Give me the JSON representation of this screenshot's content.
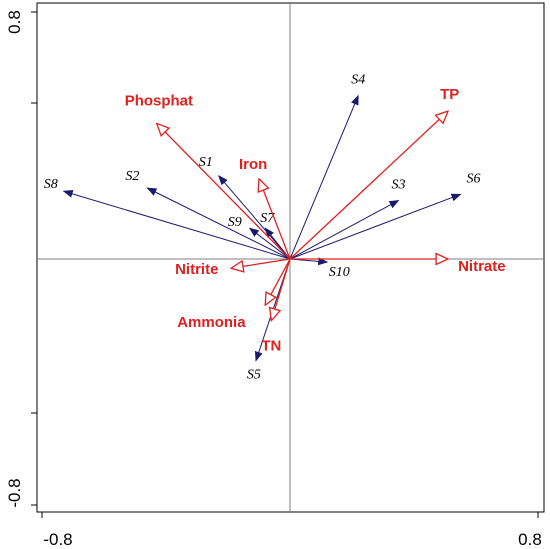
{
  "chart_data": {
    "type": "scatter",
    "title": "",
    "xlabel": "",
    "ylabel": "",
    "xlim": [
      -0.8,
      0.8
    ],
    "ylim": [
      -0.8,
      0.8
    ],
    "x_tick_labels": [
      "-0.8",
      "0.8"
    ],
    "y_tick_labels": [
      "-0.8",
      "0.8"
    ],
    "grid": false,
    "colors": {
      "sites": "#1a1a6e",
      "environment": "#e0201e",
      "frame": "#000000",
      "zero_lines": "#7f7f7f"
    },
    "series": [
      {
        "name": "",
        "arrow_style": "filled",
        "points": [
          {
            "label": "S1",
            "x": -0.23,
            "y": 0.27
          },
          {
            "label": "S2",
            "x": -0.46,
            "y": 0.23
          },
          {
            "label": "S3",
            "x": 0.35,
            "y": 0.19
          },
          {
            "label": "S4",
            "x": 0.22,
            "y": 0.53
          },
          {
            "label": "S5",
            "x": -0.11,
            "y": -0.33
          },
          {
            "label": "S6",
            "x": 0.55,
            "y": 0.21
          },
          {
            "label": "S7",
            "x": -0.08,
            "y": 0.1
          },
          {
            "label": "S8",
            "x": -0.73,
            "y": 0.22
          },
          {
            "label": "S9",
            "x": -0.13,
            "y": 0.1
          },
          {
            "label": "S10",
            "x": 0.12,
            "y": -0.01
          }
        ]
      },
      {
        "name": "",
        "arrow_style": "open",
        "points": [
          {
            "label": "Phosphat",
            "x": -0.43,
            "y": 0.44
          },
          {
            "label": "Iron",
            "x": -0.1,
            "y": 0.26
          },
          {
            "label": "TP",
            "x": 0.51,
            "y": 0.48
          },
          {
            "label": "Nitrite",
            "x": -0.19,
            "y": -0.03
          },
          {
            "label": "Nitrate",
            "x": 0.51,
            "y": 0.0
          },
          {
            "label": "Ammonia",
            "x": -0.08,
            "y": -0.15
          },
          {
            "label": "TN",
            "x": -0.06,
            "y": -0.2
          }
        ]
      }
    ]
  }
}
